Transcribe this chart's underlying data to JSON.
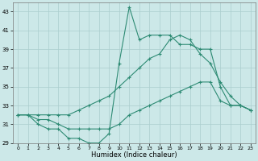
{
  "xlabel": "Humidex (Indice chaleur)",
  "x_values": [
    0,
    1,
    2,
    3,
    4,
    5,
    6,
    7,
    8,
    9,
    10,
    11,
    12,
    13,
    14,
    15,
    16,
    17,
    18,
    19,
    20,
    21,
    22,
    23
  ],
  "line_upper": [
    32.0,
    32.0,
    32.0,
    32.0,
    32.0,
    32.0,
    32.5,
    33.0,
    33.5,
    34.0,
    35.0,
    36.0,
    37.0,
    38.0,
    38.5,
    40.0,
    40.5,
    40.0,
    38.5,
    37.5,
    35.5,
    34.0,
    33.0,
    32.5
  ],
  "line_jagged": [
    32.0,
    32.0,
    31.0,
    30.5,
    30.5,
    29.5,
    29.5,
    29.0,
    29.0,
    30.0,
    37.5,
    43.5,
    40.0,
    40.5,
    40.5,
    40.5,
    39.5,
    39.5,
    39.0,
    39.0,
    35.0,
    33.0,
    33.0,
    32.5
  ],
  "line_lower": [
    32.0,
    32.0,
    31.5,
    31.5,
    31.0,
    30.5,
    30.5,
    30.5,
    30.5,
    30.5,
    31.0,
    32.0,
    32.5,
    33.0,
    33.5,
    34.0,
    34.5,
    35.0,
    35.5,
    35.5,
    33.5,
    33.0,
    33.0,
    32.5
  ],
  "line_color": "#2e8b74",
  "bg_color": "#cce8e8",
  "grid_color": "#aacece",
  "ylim": [
    29,
    44
  ],
  "xlim": [
    -0.5,
    23.5
  ],
  "yticks": [
    29,
    31,
    33,
    35,
    37,
    39,
    41,
    43
  ],
  "xticks": [
    0,
    1,
    2,
    3,
    4,
    5,
    6,
    7,
    8,
    9,
    10,
    11,
    12,
    13,
    14,
    15,
    16,
    17,
    18,
    19,
    20,
    21,
    22,
    23
  ]
}
